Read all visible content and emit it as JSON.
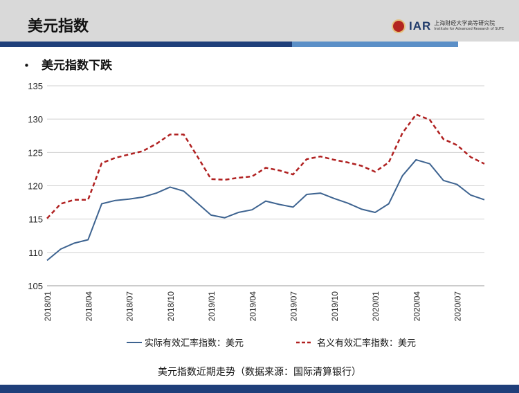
{
  "header": {
    "title": "美元指数"
  },
  "logo": {
    "mark": "IAR",
    "name_cn": "上海财经大学高等研究院",
    "name_en": "Institute for Advanced Research of SUFE"
  },
  "subtitle": "美元指数下跌",
  "caption": "美元指数近期走势（数据来源：国际清算银行）",
  "colors": {
    "real": "#3d6390",
    "nominal": "#b02020",
    "header_bg": "#d9d9d9",
    "bar_dark": "#1f3f7a",
    "bar_light": "#5b8fc7"
  },
  "chart_data": {
    "type": "line",
    "title": "",
    "xlabel": "",
    "ylabel": "",
    "ylim": [
      105,
      135
    ],
    "yticks": [
      105,
      110,
      115,
      120,
      125,
      130,
      135
    ],
    "x": [
      "2018/01",
      "2018/02",
      "2018/03",
      "2018/04",
      "2018/05",
      "2018/06",
      "2018/07",
      "2018/08",
      "2018/09",
      "2018/10",
      "2018/11",
      "2018/12",
      "2019/01",
      "2019/02",
      "2019/03",
      "2019/04",
      "2019/05",
      "2019/06",
      "2019/07",
      "2019/08",
      "2019/09",
      "2019/10",
      "2019/11",
      "2019/12",
      "2020/01",
      "2020/02",
      "2020/03",
      "2020/04",
      "2020/05",
      "2020/06",
      "2020/07",
      "2020/08",
      "2020/09"
    ],
    "x_tick_labels": [
      "2018/01",
      "2018/04",
      "2018/07",
      "2018/10",
      "2019/01",
      "2019/04",
      "2019/07",
      "2019/10",
      "2020/01",
      "2020/04",
      "2020/07"
    ],
    "grid": true,
    "legend_position": "bottom",
    "series": [
      {
        "name": "实际有效汇率指数：美元",
        "style": "solid",
        "values": [
          108.8,
          110.5,
          111.4,
          111.9,
          117.3,
          117.8,
          118.0,
          118.3,
          118.9,
          119.8,
          119.2,
          117.4,
          115.6,
          115.2,
          116.0,
          116.4,
          117.7,
          117.2,
          116.8,
          118.7,
          118.9,
          118.1,
          117.4,
          116.5,
          116.0,
          117.3,
          121.5,
          123.9,
          123.3,
          120.8,
          120.2,
          118.6,
          117.9
        ]
      },
      {
        "name": "名义有效汇率指数：美元",
        "style": "dashed",
        "values": [
          115.1,
          117.3,
          117.9,
          117.9,
          123.4,
          124.2,
          124.7,
          125.2,
          126.3,
          127.7,
          127.7,
          124.4,
          121.0,
          120.9,
          121.2,
          121.4,
          122.7,
          122.3,
          121.7,
          124.0,
          124.4,
          123.9,
          123.5,
          123.0,
          122.1,
          123.5,
          127.9,
          130.7,
          129.9,
          127.0,
          126.1,
          124.3,
          123.3
        ]
      }
    ]
  }
}
